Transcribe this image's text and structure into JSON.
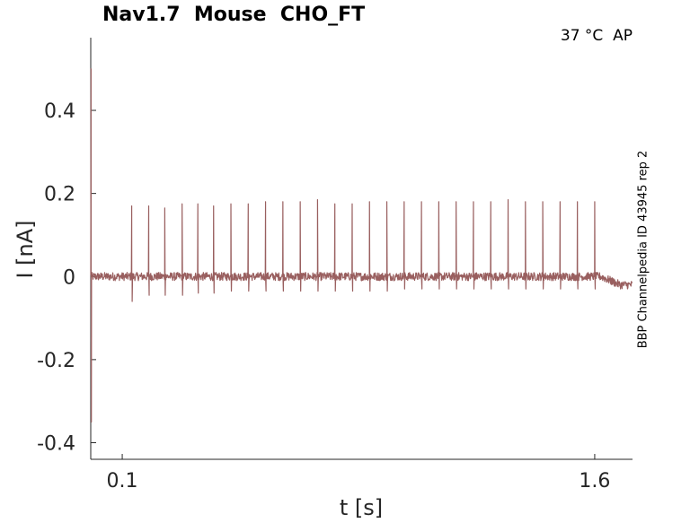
{
  "chart_data": {
    "type": "line",
    "title": "Nav1.7  Mouse  CHO_FT",
    "annotation": "37 °C  AP",
    "side_label": "BBP Channelpedia ID 43945 rep 2",
    "xlabel": "t [s]",
    "ylabel": "I [nA]",
    "xlim": [
      0.0,
      1.72
    ],
    "ylim": [
      -0.44,
      0.575
    ],
    "xticks": [
      0.1,
      1.6
    ],
    "xtick_labels": [
      "0.1",
      "1.6"
    ],
    "yticks": [
      0.4,
      0.2,
      0,
      -0.2,
      -0.4
    ],
    "ytick_labels": [
      "0.4",
      "0.2",
      "0",
      "-0.2",
      "-0.4"
    ],
    "grid": false,
    "series": [
      {
        "color": "#995f5f",
        "baseline_before": 0.0,
        "baseline_after": -0.02,
        "stim_start": 0.0,
        "stim_end": 1.6,
        "spike_times": [
          0.13,
          0.184,
          0.235,
          0.29,
          0.34,
          0.39,
          0.445,
          0.5,
          0.555,
          0.61,
          0.665,
          0.72,
          0.775,
          0.83,
          0.885,
          0.94,
          0.995,
          1.05,
          1.105,
          1.16,
          1.215,
          1.27,
          1.325,
          1.38,
          1.435,
          1.49,
          1.545,
          1.6
        ],
        "spike_peaks": [
          0.17,
          0.17,
          0.165,
          0.175,
          0.175,
          0.17,
          0.175,
          0.175,
          0.18,
          0.18,
          0.18,
          0.185,
          0.175,
          0.175,
          0.18,
          0.18,
          0.18,
          0.18,
          0.18,
          0.18,
          0.18,
          0.18,
          0.185,
          0.18,
          0.18,
          0.18,
          0.18,
          0.18
        ],
        "spike_troughs": [
          -0.06,
          -0.045,
          -0.045,
          -0.045,
          -0.04,
          -0.04,
          -0.035,
          -0.035,
          -0.035,
          -0.035,
          -0.035,
          -0.035,
          -0.035,
          -0.035,
          -0.035,
          -0.035,
          -0.03,
          -0.03,
          -0.03,
          -0.03,
          -0.03,
          -0.03,
          -0.03,
          -0.03,
          -0.03,
          -0.03,
          -0.03,
          -0.03
        ],
        "onset_transient_max": 0.5,
        "onset_transient_min": -0.35
      }
    ]
  }
}
